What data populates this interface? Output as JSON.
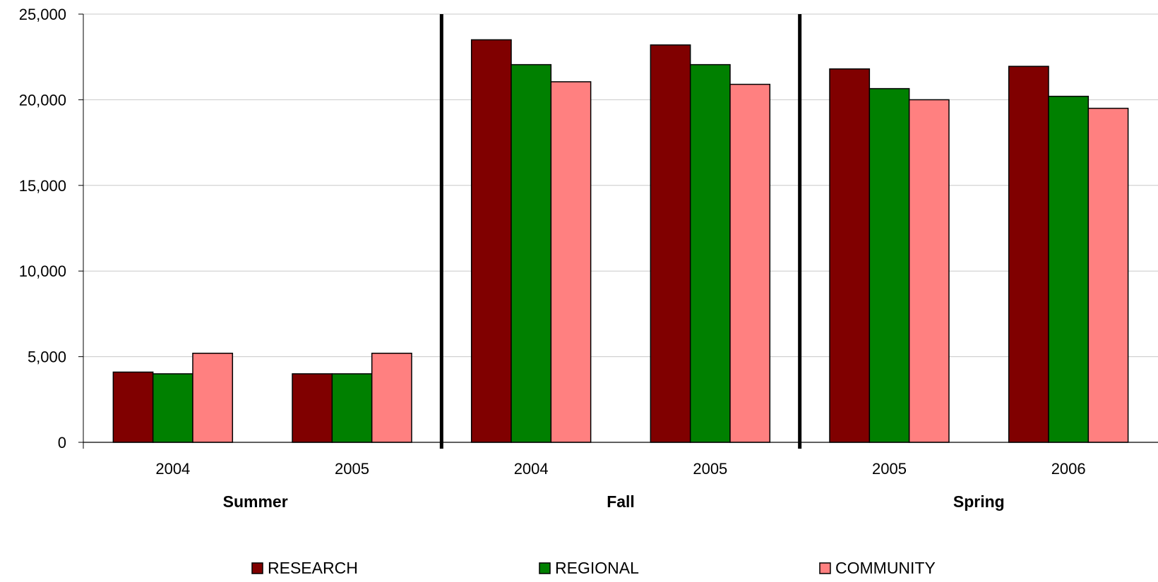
{
  "chart_data": {
    "type": "bar",
    "ylim": [
      0,
      25000
    ],
    "yticks": [
      0,
      5000,
      10000,
      15000,
      20000,
      25000
    ],
    "ytick_labels": [
      "0",
      "5,000",
      "10,000",
      "15,000",
      "20,000",
      "25,000"
    ],
    "grid": true,
    "legend_position": "bottom",
    "groups": [
      {
        "label": "Summer",
        "categories": [
          "2004",
          "2005"
        ]
      },
      {
        "label": "Fall",
        "categories": [
          "2004",
          "2005"
        ]
      },
      {
        "label": "Spring",
        "categories": [
          "2005",
          "2006"
        ]
      }
    ],
    "categories": [
      "2004",
      "2005",
      "2004",
      "2005",
      "2005",
      "2006"
    ],
    "series": [
      {
        "name": "RESEARCH",
        "color": "#800000",
        "values": [
          4100,
          4000,
          23500,
          23200,
          21800,
          21950
        ]
      },
      {
        "name": "REGIONAL",
        "color": "#008000",
        "values": [
          4000,
          4000,
          22050,
          22050,
          20650,
          20200
        ]
      },
      {
        "name": "COMMUNITY",
        "color": "#FF8080",
        "values": [
          5200,
          5200,
          21050,
          20900,
          20000,
          19500
        ]
      }
    ]
  }
}
